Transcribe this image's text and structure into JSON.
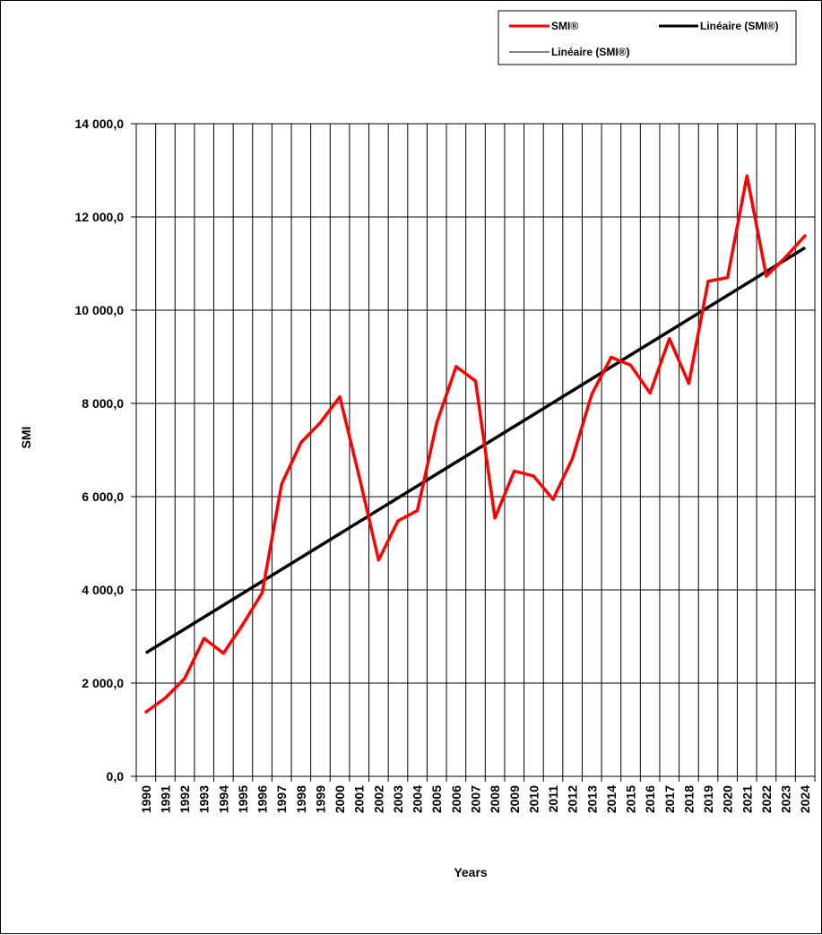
{
  "chart_data": {
    "type": "line",
    "title": "",
    "xlabel": "Years",
    "ylabel": "SMI",
    "ylim": [
      0,
      14000
    ],
    "yticks": [
      0,
      2000,
      4000,
      6000,
      8000,
      10000,
      12000,
      14000
    ],
    "ytick_labels": [
      "0,0",
      "2 000,0",
      "4 000,0",
      "6 000,0",
      "8 000,0",
      "10 000,0",
      "12 000,0",
      "14 000,0"
    ],
    "grid": true,
    "legend_position": "top-right",
    "categories": [
      "1990",
      "1991",
      "1992",
      "1993",
      "1994",
      "1995",
      "1996",
      "1997",
      "1998",
      "1999",
      "2000",
      "2001",
      "2002",
      "2003",
      "2004",
      "2005",
      "2006",
      "2007",
      "2008",
      "2009",
      "2010",
      "2011",
      "2012",
      "2013",
      "2014",
      "2015",
      "2016",
      "2017",
      "2018",
      "2019",
      "2020",
      "2021",
      "2022",
      "2023",
      "2024"
    ],
    "series": [
      {
        "name": "SMI®",
        "color": "#ff0000",
        "values": [
          1380,
          1680,
          2100,
          2960,
          2640,
          3260,
          3940,
          6270,
          7160,
          7590,
          8140,
          6430,
          4640,
          5480,
          5700,
          7580,
          8790,
          8480,
          5540,
          6550,
          6440,
          5940,
          6820,
          8200,
          8990,
          8820,
          8220,
          9390,
          8430,
          10620,
          10700,
          12880,
          10730,
          11140,
          11600
        ]
      }
    ],
    "trendlines": [
      {
        "name": "Linéaire (SMI®)",
        "color": "#000000",
        "kind": "linear",
        "start": 2650,
        "end": 11340
      }
    ],
    "legend_entries": [
      {
        "label": "SMI®",
        "color": "#ff0000",
        "weight": "thick"
      },
      {
        "label": "Linéaire (SMI®)",
        "color": "#000000",
        "weight": "thick"
      },
      {
        "label": "Linéaire (SMI®)",
        "color": "#000000",
        "weight": "thin"
      }
    ]
  }
}
